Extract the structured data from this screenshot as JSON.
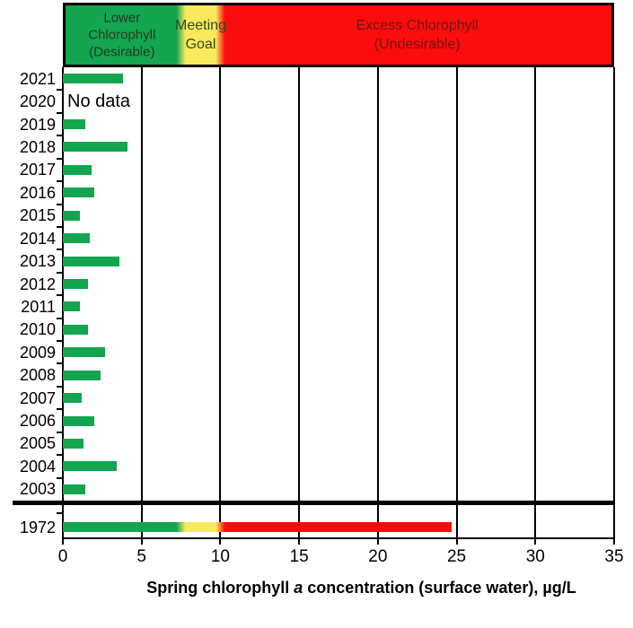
{
  "chart_data": {
    "type": "bar",
    "orientation": "horizontal",
    "xlabel": "Spring chlorophyll a concentration (surface water), µg/L",
    "xlabel_parts": {
      "pre": "Spring chlorophyll ",
      "italic": "a",
      "post": " concentration (surface water), µg/L"
    },
    "xlim": [
      0,
      35
    ],
    "x_ticks": [
      0,
      5,
      10,
      15,
      20,
      25,
      30,
      35
    ],
    "grid": "vertical-on",
    "bar_color": "#14a54f",
    "zones": [
      {
        "label_lines": [
          "Lower",
          "Chlorophyll",
          "(Desirable)"
        ],
        "from": 0,
        "to": 7.5,
        "color": "#14a54f",
        "text_color": "#1e3b24"
      },
      {
        "label_lines": [
          "Meeting",
          "Goal"
        ],
        "from": 7.5,
        "to": 10,
        "color": "#f8e95d",
        "text_color": "#32491f"
      },
      {
        "label_lines": [
          "Excess Chlorophyll",
          "(Undesirable)"
        ],
        "from": 10,
        "to": 35,
        "color": "#fb0d0d",
        "text_color": "#701512"
      }
    ],
    "rows": [
      {
        "year": "2021",
        "value": 3.8
      },
      {
        "year": "2020",
        "value": null,
        "note": "No data"
      },
      {
        "year": "2019",
        "value": 1.4
      },
      {
        "year": "2018",
        "value": 4.1
      },
      {
        "year": "2017",
        "value": 1.8
      },
      {
        "year": "2016",
        "value": 2.0
      },
      {
        "year": "2015",
        "value": 1.1
      },
      {
        "year": "2014",
        "value": 1.7
      },
      {
        "year": "2013",
        "value": 3.6
      },
      {
        "year": "2012",
        "value": 1.6
      },
      {
        "year": "2011",
        "value": 1.1
      },
      {
        "year": "2010",
        "value": 1.6
      },
      {
        "year": "2009",
        "value": 2.7
      },
      {
        "year": "2008",
        "value": 2.4
      },
      {
        "year": "2007",
        "value": 1.2
      },
      {
        "year": "2006",
        "value": 2.0
      },
      {
        "year": "2005",
        "value": 1.3
      },
      {
        "year": "2004",
        "value": 3.4
      },
      {
        "year": "2003",
        "value": 1.4
      }
    ],
    "break_row": {
      "year": "1972",
      "value": 24.7,
      "segments": [
        {
          "from": 0,
          "to": 7.5,
          "color": "#14a54f"
        },
        {
          "from": 7.5,
          "to": 10,
          "color": "#f8e95d"
        },
        {
          "from": 10,
          "to": 24.7,
          "color": "#fb0d0d"
        }
      ]
    }
  }
}
